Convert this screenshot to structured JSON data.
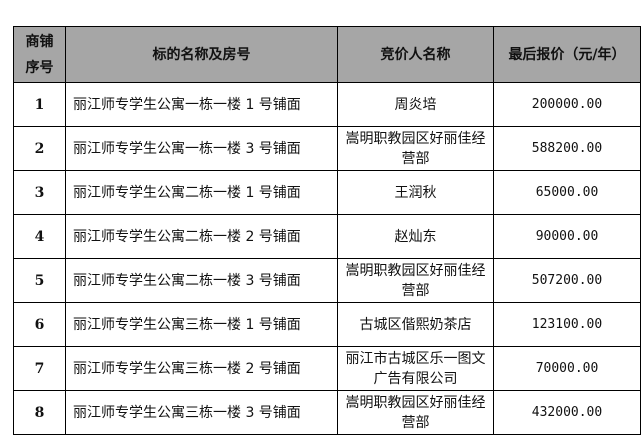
{
  "headers": {
    "index": "商铺序号",
    "index_line1": "商铺",
    "index_line2": "序号",
    "item": "标的名称及房号",
    "bidder": "竞价人名称",
    "price": "最后报价（元/年）"
  },
  "colors": {
    "header_bg": "#a6a6a6",
    "border": "#000000"
  },
  "rows": [
    {
      "index": "1",
      "item": "丽江师专学生公寓一栋一楼 1 号铺面",
      "bidder": "周炎培",
      "price": "200000.00"
    },
    {
      "index": "2",
      "item": "丽江师专学生公寓一栋一楼 3 号铺面",
      "bidder": "嵩明职教园区好丽佳经营部",
      "price": "588200.00"
    },
    {
      "index": "3",
      "item": "丽江师专学生公寓二栋一楼 1 号铺面",
      "bidder": "王润秋",
      "price": "65000.00"
    },
    {
      "index": "4",
      "item": "丽江师专学生公寓二栋一楼 2 号铺面",
      "bidder": "赵灿东",
      "price": "90000.00"
    },
    {
      "index": "5",
      "item": "丽江师专学生公寓二栋一楼 3 号铺面",
      "bidder": "嵩明职教园区好丽佳经营部",
      "price": "507200.00"
    },
    {
      "index": "6",
      "item": "丽江师专学生公寓三栋一楼 1 号铺面",
      "bidder": "古城区偕熙奶茶店",
      "price": "123100.00"
    },
    {
      "index": "7",
      "item": "丽江师专学生公寓三栋一楼 2 号铺面",
      "bidder": "丽江市古城区乐一图文广告有限公司",
      "price": "70000.00"
    },
    {
      "index": "8",
      "item": "丽江师专学生公寓三栋一楼 3 号铺面",
      "bidder": "嵩明职教园区好丽佳经营部",
      "price": "432000.00"
    }
  ]
}
